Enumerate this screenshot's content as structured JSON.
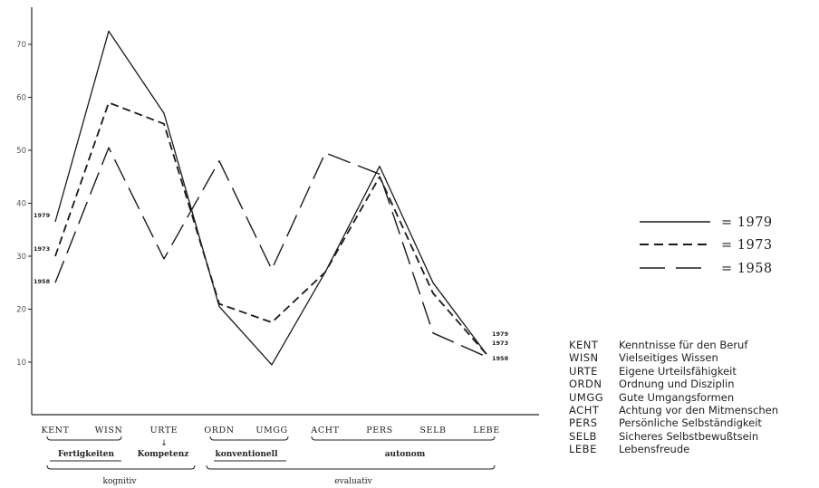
{
  "chart_data": {
    "type": "line",
    "categories": [
      "KENT",
      "WISN",
      "URTE",
      "ORDN",
      "UMGG",
      "ACHT",
      "PERS",
      "SELB",
      "LEBE"
    ],
    "ylim": [
      0,
      75
    ],
    "yticks": [
      10,
      20,
      30,
      40,
      50,
      60,
      70
    ],
    "ytick_labels": [
      "10",
      "20",
      "30",
      "40",
      "50",
      "60",
      "70"
    ],
    "series": [
      {
        "name": "1979",
        "style": "solid",
        "values": [
          36.5,
          72.5,
          57,
          20.5,
          9.5,
          27,
          47,
          25,
          11.5
        ]
      },
      {
        "name": "1973",
        "style": "dashed",
        "values": [
          30,
          59,
          55,
          21,
          17.5,
          27,
          45,
          23,
          11.5
        ]
      },
      {
        "name": "1958",
        "style": "longdash",
        "values": [
          25,
          50.5,
          29.5,
          48,
          27.5,
          49.5,
          45.5,
          15.5,
          11
        ]
      }
    ],
    "legend": {
      "placement": "right",
      "entries": [
        {
          "text": "= 1979",
          "style": "solid"
        },
        {
          "text": "= 1973",
          "style": "dashed"
        },
        {
          "text": "= 1958",
          "style": "longdash"
        }
      ]
    },
    "start_labels": [
      "1979",
      "1973",
      "1958"
    ],
    "end_labels": [
      "1979",
      "1973",
      "1958"
    ],
    "groups": {
      "level1": [
        {
          "label": "Fertigkeiten",
          "from": 0,
          "to": 1
        },
        {
          "label": "Kompetenz",
          "from": 2,
          "to": 2
        },
        {
          "label": "konventionell",
          "from": 3,
          "to": 4
        },
        {
          "label": "autonom",
          "from": 5,
          "to": 8
        }
      ],
      "level2": [
        {
          "label": "kognitiv",
          "from": 0,
          "to": 2
        },
        {
          "label": "evaluativ",
          "from": 3,
          "to": 8
        }
      ],
      "arrow_glyph": "↓"
    },
    "grid": false
  },
  "abbreviations": [
    {
      "code": "KENT",
      "desc": "Kenntnisse für den Beruf"
    },
    {
      "code": "WISN",
      "desc": "Vielseitiges Wissen"
    },
    {
      "code": "URTE",
      "desc": "Eigene Urteilsfähigkeit"
    },
    {
      "code": "ORDN",
      "desc": "Ordnung und Disziplin"
    },
    {
      "code": "UMGG",
      "desc": "Gute Umgangsformen"
    },
    {
      "code": "ACHT",
      "desc": "Achtung vor den Mitmenschen"
    },
    {
      "code": "PERS",
      "desc": "Persönliche Selbständigkeit"
    },
    {
      "code": "SELB",
      "desc": "Sicheres Selbstbewußtsein"
    },
    {
      "code": "LEBE",
      "desc": "Lebensfreude"
    }
  ]
}
